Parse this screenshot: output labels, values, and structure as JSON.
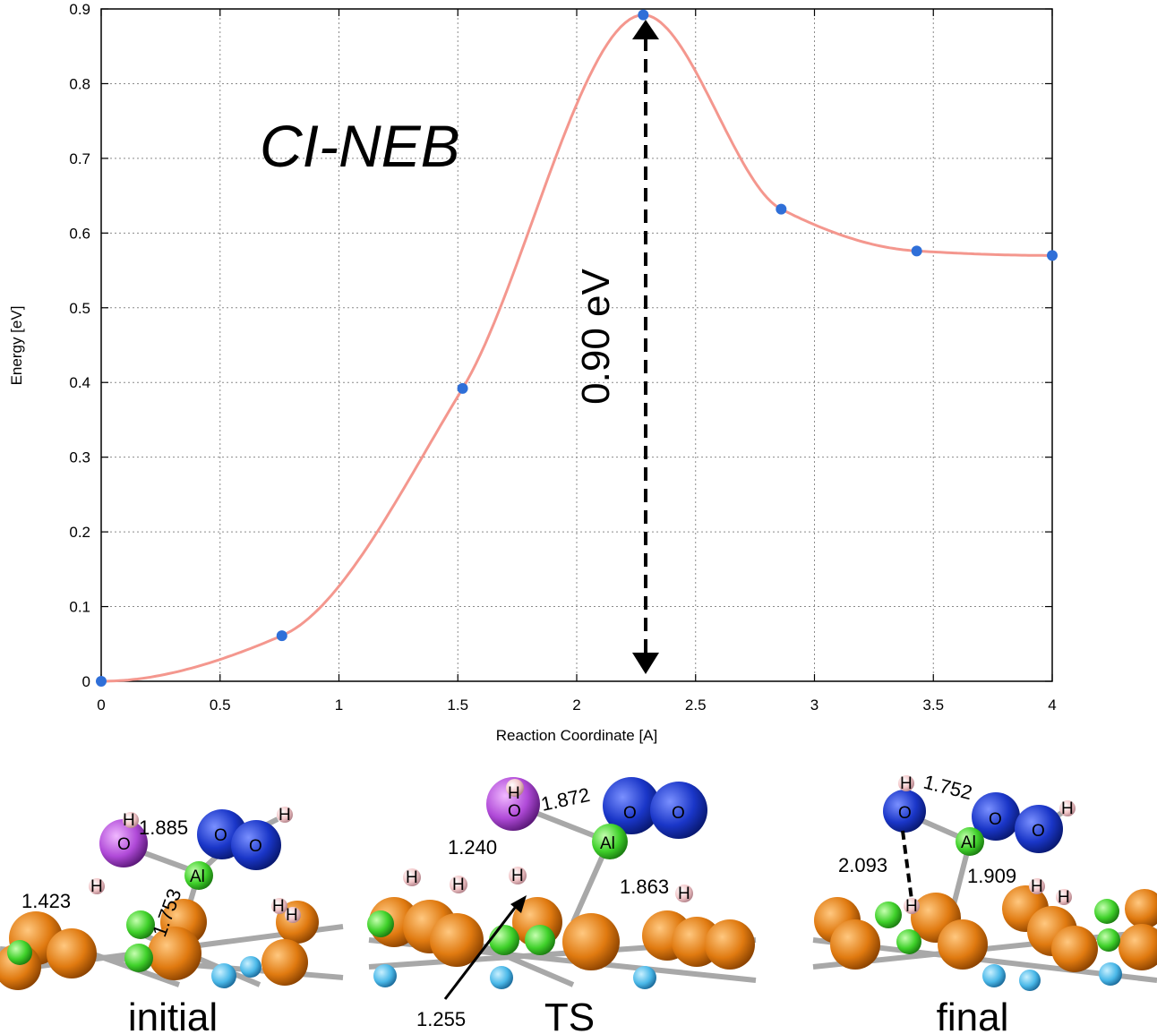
{
  "chart_data": {
    "type": "line",
    "title": "",
    "annotation_method": "CI-NEB",
    "annotation_barrier": "0.90 eV",
    "xlabel": "Reaction Coordinate [A]",
    "ylabel": "Energy [eV]",
    "xlim": [
      0,
      4
    ],
    "ylim": [
      0,
      0.9
    ],
    "x_ticks": [
      "0",
      "0.5",
      "1",
      "1.5",
      "2",
      "2.5",
      "3",
      "3.5",
      "4"
    ],
    "y_ticks": [
      "0",
      "0.1",
      "0.2",
      "0.3",
      "0.4",
      "0.5",
      "0.6",
      "0.7",
      "0.8",
      "0.9"
    ],
    "grid": true,
    "series": [
      {
        "color": "#f4978e",
        "x": [
          0,
          0.76,
          1.52,
          2.28,
          2.86,
          3.43,
          4.0
        ],
        "y": [
          0.0,
          0.061,
          0.392,
          0.892,
          0.632,
          0.576,
          0.57
        ]
      }
    ],
    "point_color": "#2f6fd8"
  },
  "structures": {
    "panels": [
      {
        "label": "initial",
        "distances": [
          "1.885",
          "1.423",
          "1.753"
        ],
        "atom_labels": [
          "H",
          "O",
          "H",
          "O",
          "O",
          "H",
          "Al",
          "H",
          "H"
        ]
      },
      {
        "label": "TS",
        "distances": [
          "1.872",
          "1.240",
          "1.863",
          "1.255"
        ],
        "atom_labels": [
          "H",
          "O",
          "O",
          "O",
          "Al",
          "H",
          "H",
          "H",
          "H"
        ]
      },
      {
        "label": "final",
        "distances": [
          "1.752",
          "2.093",
          "1.909"
        ],
        "atom_labels": [
          "H",
          "O",
          "O",
          "O",
          "H",
          "Al",
          "H",
          "H",
          "H"
        ]
      }
    ]
  },
  "colors": {
    "orange_atom": "#e07a10",
    "green_atom": "#3fd12a",
    "blue_atom": "#1a36c8",
    "purple_atom": "#b04ad8",
    "pink_atom": "#f2c6c8",
    "cyan_atom": "#4ab8e8",
    "bond": "#a8a8a8"
  }
}
